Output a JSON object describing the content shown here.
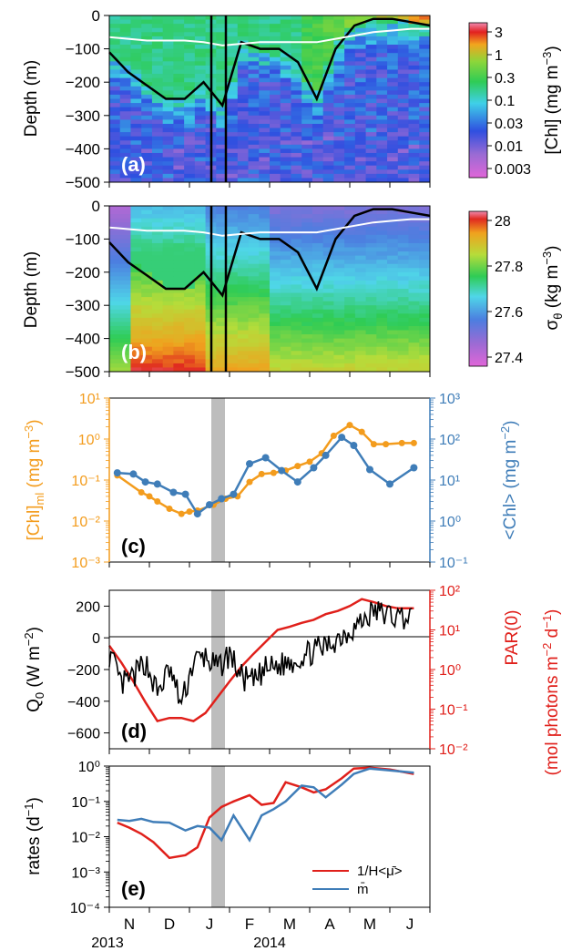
{
  "figure": {
    "colorbar_ticks_chl": [
      "3",
      "1",
      "0.3",
      "0.1",
      "0.03",
      "0.01",
      "0.003"
    ],
    "colorbar_ticks_sigma": [
      "28",
      "27.8",
      "27.6",
      "27.4"
    ],
    "x_month_labels": [
      "N",
      "D",
      "J",
      "F",
      "M",
      "A",
      "M",
      "J"
    ],
    "x_year_labels": [
      "2013",
      "2014"
    ]
  },
  "chart_data": [
    {
      "panel": "(a)",
      "type": "heatmap",
      "ylabel": "Depth (m)",
      "yticks": [
        0,
        -100,
        -200,
        -300,
        -400,
        -500
      ],
      "ylim": [
        -500,
        0
      ],
      "colorbar_label": "[Chl] (mg m⁻³)",
      "colorbar_scale": "log",
      "colorbar_range": [
        0.002,
        5
      ],
      "mld_depth_black": [
        -110,
        -170,
        -210,
        -250,
        -250,
        -200,
        -270,
        -80,
        -100,
        -100,
        -140,
        -250,
        -100,
        -30,
        -10,
        -10,
        -20,
        -30
      ],
      "euphotic_depth_white": [
        -65,
        -70,
        -75,
        -75,
        -75,
        -80,
        -90,
        -85,
        -80,
        -80,
        -80,
        -80,
        -70,
        -60,
        -50,
        -45,
        -40,
        -40
      ]
    },
    {
      "panel": "(b)",
      "type": "heatmap",
      "ylabel": "Depth (m)",
      "yticks": [
        0,
        -100,
        -200,
        -300,
        -400,
        -500
      ],
      "ylim": [
        -500,
        0
      ],
      "colorbar_label": "σθ (kg m⁻³)",
      "colorbar_range": [
        27.35,
        28.1
      ]
    },
    {
      "panel": "(c)",
      "type": "line",
      "yscale": "log",
      "ylabel_left": "[Chl]ml (mg m⁻³)",
      "ylabel_right": "<Chl> (mg m⁻²)",
      "left_ticks": [
        "10¹",
        "10⁰",
        "10⁻¹",
        "10⁻²",
        "10⁻³"
      ],
      "right_ticks": [
        "10³",
        "10²",
        "10¹",
        "10⁰",
        "10⁻¹"
      ],
      "series": [
        {
          "name": "[Chl]ml",
          "color": "#f39c1d",
          "x_month": [
            0.2,
            0.8,
            1.0,
            1.2,
            1.5,
            1.8,
            2.0,
            2.2,
            2.6,
            2.9,
            3.2,
            3.5,
            3.8,
            4.1,
            4.4,
            4.7,
            5.0,
            5.3,
            5.6,
            6.0,
            6.3,
            6.6,
            6.9,
            7.3,
            7.6
          ],
          "values": [
            0.13,
            0.05,
            0.04,
            0.03,
            0.02,
            0.015,
            0.017,
            0.018,
            0.025,
            0.035,
            0.04,
            0.09,
            0.14,
            0.15,
            0.17,
            0.22,
            0.28,
            0.45,
            1.2,
            2.2,
            1.5,
            0.75,
            0.75,
            0.8,
            0.8
          ]
        },
        {
          "name": "<Chl>",
          "color": "#3f7db8",
          "x_month": [
            0.2,
            0.6,
            0.9,
            1.2,
            1.6,
            1.9,
            2.2,
            2.5,
            2.8,
            3.1,
            3.5,
            3.9,
            4.3,
            4.7,
            5.1,
            5.4,
            5.8,
            6.1,
            6.5,
            7.0,
            7.6
          ],
          "values": [
            15,
            14,
            9,
            8,
            5,
            4.5,
            1.5,
            2.5,
            3.5,
            4.5,
            25,
            35,
            17,
            9,
            20,
            40,
            110,
            70,
            18,
            8,
            20
          ]
        }
      ]
    },
    {
      "panel": "(d)",
      "type": "line",
      "ylabel_left": "Q0 (W m⁻²)",
      "ylabel_right": "PAR(0) (mol photons m⁻² d⁻¹)",
      "left_ticks": [
        "200",
        "0",
        "−200",
        "−400",
        "−600"
      ],
      "right_ticks": [
        "10²",
        "10¹",
        "10⁰",
        "10⁻¹",
        "10⁻²"
      ],
      "ylim_left": [
        -700,
        300
      ],
      "series": [
        {
          "name": "Q0",
          "color": "#000000",
          "x_month": [
            0,
            0.3,
            0.6,
            0.9,
            1.2,
            1.5,
            1.8,
            2.1,
            2.4,
            2.7,
            3.0,
            3.3,
            3.6,
            3.9,
            4.2,
            4.5,
            4.8,
            5.1,
            5.4,
            5.7,
            6.0,
            6.3,
            6.6,
            6.9,
            7.2,
            7.6
          ],
          "values": [
            -100,
            -300,
            -250,
            -150,
            -350,
            -200,
            -420,
            -150,
            -120,
            -200,
            -100,
            -250,
            -280,
            -200,
            -180,
            -150,
            -120,
            -80,
            -60,
            0,
            50,
            100,
            170,
            150,
            130,
            150
          ]
        },
        {
          "name": "PAR(0)",
          "color": "#e0201b",
          "x_month": [
            0,
            0.3,
            0.6,
            0.9,
            1.2,
            1.5,
            1.8,
            2.1,
            2.4,
            2.7,
            3.0,
            3.3,
            3.6,
            3.9,
            4.2,
            4.5,
            4.8,
            5.1,
            5.4,
            5.7,
            6.0,
            6.3,
            6.6,
            6.9,
            7.2,
            7.6
          ],
          "values": [
            4,
            1.5,
            0.5,
            0.15,
            0.05,
            0.06,
            0.06,
            0.05,
            0.08,
            0.2,
            0.5,
            1.2,
            2.5,
            5,
            10,
            12,
            15,
            18,
            25,
            30,
            40,
            60,
            50,
            40,
            35,
            35
          ]
        }
      ]
    },
    {
      "panel": "(e)",
      "type": "line",
      "yscale": "log",
      "ylabel": "rates (d⁻¹)",
      "yticks": [
        "10⁰",
        "10⁻¹",
        "10⁻²",
        "10⁻³",
        "10⁻⁴"
      ],
      "legend": [
        "1/H<μ̄>",
        "m̄"
      ],
      "legend_placement": "lower-right",
      "series": [
        {
          "name": "1/H<μ̄>",
          "color": "#e0201b",
          "x_month": [
            0.2,
            0.5,
            0.8,
            1.1,
            1.5,
            1.9,
            2.2,
            2.5,
            2.8,
            3.1,
            3.5,
            3.8,
            4.1,
            4.4,
            4.8,
            5.1,
            5.4,
            5.8,
            6.1,
            6.5,
            7.0,
            7.6
          ],
          "values": [
            0.025,
            0.018,
            0.012,
            0.007,
            0.0025,
            0.003,
            0.005,
            0.035,
            0.07,
            0.1,
            0.15,
            0.08,
            0.09,
            0.35,
            0.25,
            0.18,
            0.22,
            0.45,
            0.85,
            0.9,
            0.8,
            0.6
          ]
        },
        {
          "name": "m̄",
          "color": "#3f7db8",
          "x_month": [
            0.2,
            0.5,
            0.8,
            1.1,
            1.5,
            1.9,
            2.2,
            2.5,
            2.8,
            3.1,
            3.5,
            3.8,
            4.1,
            4.4,
            4.8,
            5.1,
            5.4,
            5.8,
            6.1,
            6.5,
            7.0,
            7.6
          ],
          "values": [
            0.03,
            0.028,
            0.032,
            0.026,
            0.025,
            0.015,
            0.02,
            0.018,
            0.008,
            0.04,
            0.008,
            0.04,
            0.06,
            0.1,
            0.28,
            0.25,
            0.13,
            0.3,
            0.6,
            0.85,
            0.75,
            0.65
          ]
        }
      ]
    }
  ]
}
